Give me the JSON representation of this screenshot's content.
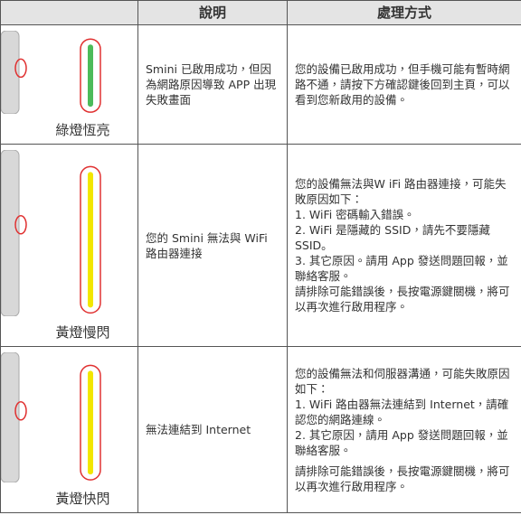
{
  "table": {
    "header": [
      "說明",
      "處理方式"
    ],
    "rows": [
      {
        "label": "綠燈恆亮",
        "description": "Smini 已啟用成功，但因為網路原因導致 APP 出現失敗畫面",
        "handling": [
          "您的設備已啟用成功，但手機可能有暫時網路不通，請按下方確認鍵後回到主頁，可以看到您新啟用的設備。"
        ]
      },
      {
        "label": "黃燈慢閃",
        "description": "您的 Smini 無法與 WiFi 路由器連接",
        "handling": [
          "您的設備無法與W iFi 路由器連接，可能失敗原因如下：",
          "1. WiFi 密碼輸入錯誤。",
          "2. WiFi 是隱藏的 SSID，請先不要隱藏 SSID。",
          "3. 其它原因。請用 App 發送問題回報，並聯絡客服。",
          "請排除可能錯誤後，長按電源鍵關機，將可以再次進行啟用程序。"
        ]
      },
      {
        "label": "黃燈快閃",
        "description": "無法連結到 Internet",
        "handling": [
          "您的設備無法和伺服器溝通，可能失敗原因如下：",
          "1. WiFi 路由器無法連結到 Internet，請確認您的網路連線。",
          "2. 其它原因，請用 App 發送問題回報，並聯絡客服。",
          "請排除可能錯誤後，長按電源鍵關機，將可以再次進行啟用程序。"
        ]
      }
    ]
  }
}
